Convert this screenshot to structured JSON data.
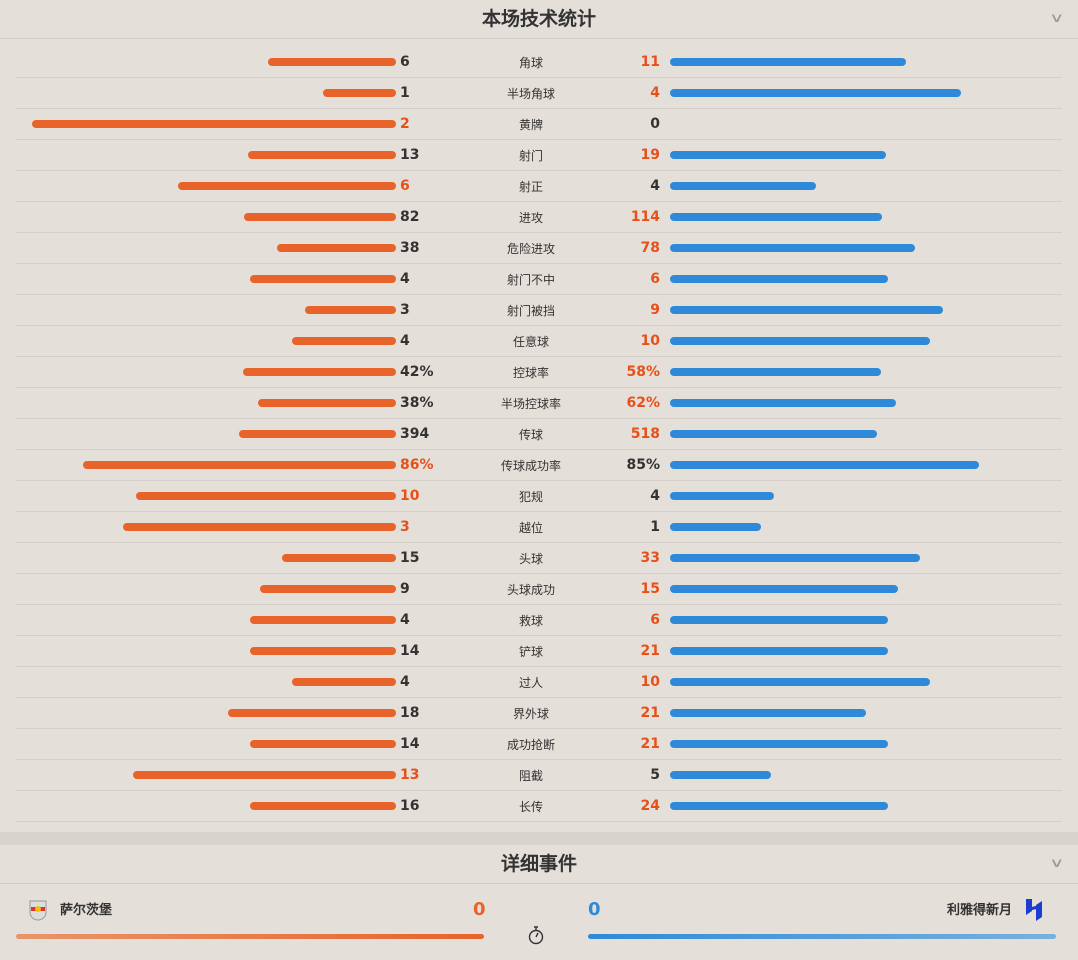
{
  "stats_section": {
    "title": "本场技术统计",
    "collapse_icon": "chevron-down-icon"
  },
  "colors": {
    "home": "#e8632a",
    "away": "#2e8ad8",
    "highlight": "#e8501a"
  },
  "stats": [
    {
      "name": "角球",
      "home": "6",
      "away": "11"
    },
    {
      "name": "半场角球",
      "home": "1",
      "away": "4"
    },
    {
      "name": "黄牌",
      "home": "2",
      "away": "0"
    },
    {
      "name": "射门",
      "home": "13",
      "away": "19"
    },
    {
      "name": "射正",
      "home": "6",
      "away": "4"
    },
    {
      "name": "进攻",
      "home": "82",
      "away": "114"
    },
    {
      "name": "危险进攻",
      "home": "38",
      "away": "78"
    },
    {
      "name": "射门不中",
      "home": "4",
      "away": "6"
    },
    {
      "name": "射门被挡",
      "home": "3",
      "away": "9"
    },
    {
      "name": "任意球",
      "home": "4",
      "away": "10"
    },
    {
      "name": "控球率",
      "home": "42%",
      "away": "58%"
    },
    {
      "name": "半场控球率",
      "home": "38%",
      "away": "62%"
    },
    {
      "name": "传球",
      "home": "394",
      "away": "518"
    },
    {
      "name": "传球成功率",
      "home": "86%",
      "away": "85%"
    },
    {
      "name": "犯规",
      "home": "10",
      "away": "4"
    },
    {
      "name": "越位",
      "home": "3",
      "away": "1"
    },
    {
      "name": "头球",
      "home": "15",
      "away": "33"
    },
    {
      "name": "头球成功",
      "home": "9",
      "away": "15"
    },
    {
      "name": "救球",
      "home": "4",
      "away": "6"
    },
    {
      "name": "铲球",
      "home": "14",
      "away": "21"
    },
    {
      "name": "过人",
      "home": "4",
      "away": "10"
    },
    {
      "name": "界外球",
      "home": "18",
      "away": "21"
    },
    {
      "name": "成功抢断",
      "home": "14",
      "away": "21"
    },
    {
      "name": "阻截",
      "home": "13",
      "away": "5"
    },
    {
      "name": "长传",
      "home": "16",
      "away": "24"
    }
  ],
  "events_section": {
    "title": "详细事件",
    "collapse_icon": "chevron-down-icon"
  },
  "home_team": {
    "name": "萨尔茨堡",
    "score": "0",
    "logo": "red-bull-salzburg-logo"
  },
  "away_team": {
    "name": "利雅得新月",
    "score": "0",
    "logo": "al-hilal-logo"
  },
  "timer_icon": "stopwatch-icon"
}
